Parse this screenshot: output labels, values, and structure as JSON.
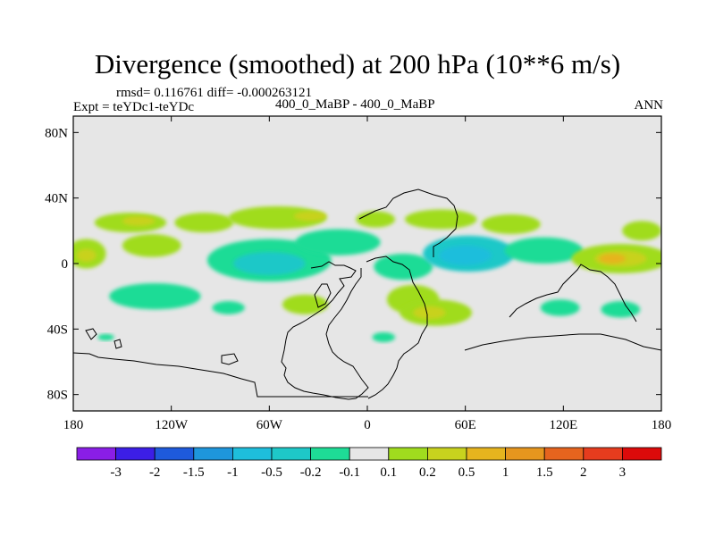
{
  "header": {
    "title": "Divergence (smoothed) at 200 hPa (10**6 m/s)",
    "stats": "rmsd= 0.116761 diff= -0.000263121",
    "expt": "Expt = teYDc1-teYDc",
    "cases": "400_0_MaBP - 400_0_MaBP",
    "season": "ANN"
  },
  "chart_data": {
    "type": "heatmap",
    "title": "Divergence (smoothed) at 200 hPa (10**6 m/s)",
    "subtitle": "400_0_MaBP - 400_0_MaBP",
    "stats": {
      "rmsd": 0.116761,
      "diff": -0.000263121
    },
    "xlabel": "",
    "ylabel": "",
    "xlim": [
      -180,
      180
    ],
    "ylim": [
      -90,
      90
    ],
    "x_ticks": [
      {
        "value": -180,
        "label": "180"
      },
      {
        "value": -120,
        "label": "120W"
      },
      {
        "value": -60,
        "label": "60W"
      },
      {
        "value": 0,
        "label": "0"
      },
      {
        "value": 60,
        "label": "60E"
      },
      {
        "value": 120,
        "label": "120E"
      },
      {
        "value": 180,
        "label": "180"
      }
    ],
    "y_ticks": [
      {
        "value": 80,
        "label": "80N"
      },
      {
        "value": 40,
        "label": "40N"
      },
      {
        "value": 0,
        "label": "0"
      },
      {
        "value": -40,
        "label": "40S"
      },
      {
        "value": -80,
        "label": "80S"
      }
    ],
    "colorbar": {
      "levels": [
        -3,
        -2,
        -1.5,
        -1,
        -0.5,
        -0.2,
        -0.1,
        0.1,
        0.2,
        0.5,
        1,
        1.5,
        2,
        3
      ],
      "labels": [
        "-3",
        "-2",
        "-1.5",
        "-1",
        "-0.5",
        "-0.2",
        "-0.1",
        "0.1",
        "0.2",
        "0.5",
        "1",
        "1.5",
        "2",
        "3"
      ],
      "colors": [
        "#8a1ee6",
        "#3c1ee6",
        "#1e5adc",
        "#1e96dc",
        "#1ebedc",
        "#1ec8c8",
        "#1edc96",
        "#e6e6e6",
        "#a0dc1e",
        "#c8d21e",
        "#e6b41e",
        "#e6961e",
        "#e6641e",
        "#e63c1e",
        "#dc0a0a"
      ]
    },
    "features": [
      {
        "lon": -145,
        "lat": 25,
        "rx": 22,
        "ry": 6,
        "level": 8
      },
      {
        "lon": -140,
        "lat": 26,
        "rx": 10,
        "ry": 3,
        "level": 9
      },
      {
        "lon": -100,
        "lat": 25,
        "rx": 18,
        "ry": 6,
        "level": 8
      },
      {
        "lon": -55,
        "lat": 28,
        "rx": 30,
        "ry": 7,
        "level": 8
      },
      {
        "lon": -35,
        "lat": 29,
        "rx": 10,
        "ry": 3,
        "level": 9
      },
      {
        "lon": 5,
        "lat": 27,
        "rx": 12,
        "ry": 5,
        "level": 8
      },
      {
        "lon": 45,
        "lat": 27,
        "rx": 22,
        "ry": 6,
        "level": 8
      },
      {
        "lon": 88,
        "lat": 24,
        "rx": 18,
        "ry": 6,
        "level": 8
      },
      {
        "lon": 168,
        "lat": 20,
        "rx": 12,
        "ry": 6,
        "level": 8
      },
      {
        "lon": -172,
        "lat": 6,
        "rx": 12,
        "ry": 9,
        "level": 8
      },
      {
        "lon": -172,
        "lat": 5,
        "rx": 6,
        "ry": 4,
        "level": 9
      },
      {
        "lon": -132,
        "lat": 11,
        "rx": 18,
        "ry": 7,
        "level": 8
      },
      {
        "lon": -60,
        "lat": 2,
        "rx": 38,
        "ry": 13,
        "level": 6
      },
      {
        "lon": -60,
        "lat": 0,
        "rx": 22,
        "ry": 7,
        "level": 5
      },
      {
        "lon": -18,
        "lat": 13,
        "rx": 26,
        "ry": 8,
        "level": 6
      },
      {
        "lon": 22,
        "lat": -2,
        "rx": 18,
        "ry": 8,
        "level": 6
      },
      {
        "lon": 62,
        "lat": 6,
        "rx": 28,
        "ry": 11,
        "level": 5
      },
      {
        "lon": 60,
        "lat": 5,
        "rx": 16,
        "ry": 6,
        "level": 4
      },
      {
        "lon": 108,
        "lat": 8,
        "rx": 24,
        "ry": 8,
        "level": 6
      },
      {
        "lon": 155,
        "lat": 3,
        "rx": 30,
        "ry": 9,
        "level": 8
      },
      {
        "lon": 155,
        "lat": 3,
        "rx": 16,
        "ry": 5,
        "level": 9
      },
      {
        "lon": 150,
        "lat": 3,
        "rx": 8,
        "ry": 3,
        "level": 10
      },
      {
        "lon": -130,
        "lat": -20,
        "rx": 28,
        "ry": 8,
        "level": 6
      },
      {
        "lon": -85,
        "lat": -27,
        "rx": 10,
        "ry": 4,
        "level": 6
      },
      {
        "lon": -38,
        "lat": -25,
        "rx": 14,
        "ry": 6,
        "level": 8
      },
      {
        "lon": 28,
        "lat": -22,
        "rx": 16,
        "ry": 9,
        "level": 8
      },
      {
        "lon": 42,
        "lat": -30,
        "rx": 22,
        "ry": 8,
        "level": 8
      },
      {
        "lon": 38,
        "lat": -30,
        "rx": 10,
        "ry": 4,
        "level": 9
      },
      {
        "lon": 118,
        "lat": -27,
        "rx": 12,
        "ry": 5,
        "level": 6
      },
      {
        "lon": 155,
        "lat": -28,
        "rx": 12,
        "ry": 5,
        "level": 6
      },
      {
        "lon": 10,
        "lat": -45,
        "rx": 7,
        "ry": 3,
        "level": 6
      },
      {
        "lon": -160,
        "lat": -45,
        "rx": 5,
        "ry": 2,
        "level": 6
      }
    ]
  }
}
